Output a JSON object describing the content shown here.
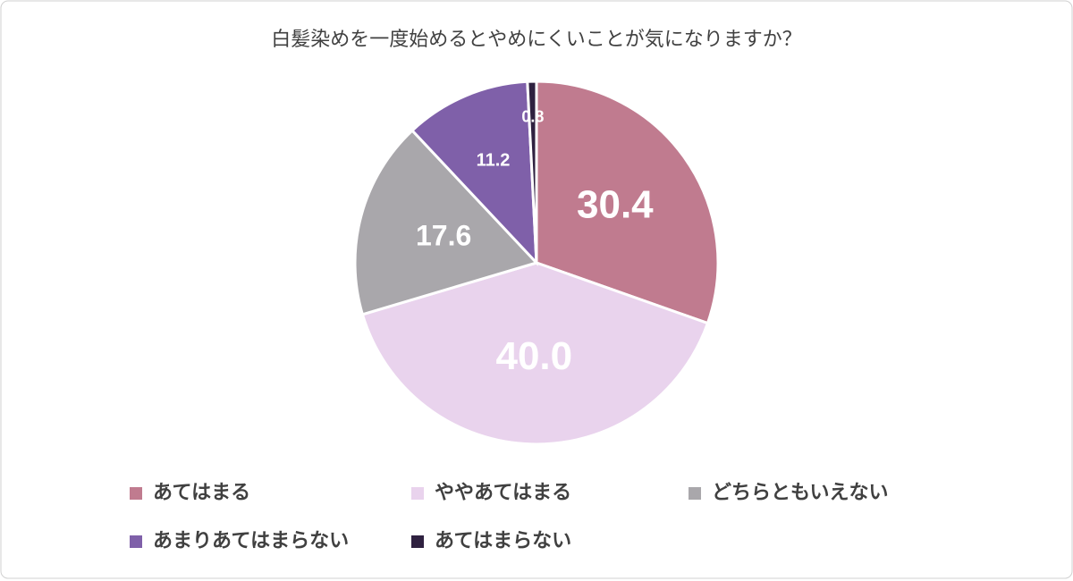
{
  "chart_data": {
    "type": "pie",
    "title": "白髪染めを一度始めるとやめにくいことが気になりますか？",
    "categories": [
      "あてはまる",
      "ややあてはまる",
      "どちらともいえない",
      "あまりあてはまらない",
      "あてはまらない"
    ],
    "values": [
      30.4,
      40.0,
      17.6,
      11.2,
      0.8
    ],
    "value_labels": [
      "30.4",
      "40.0",
      "17.6",
      "11.2",
      "0.8"
    ],
    "colors": [
      "#c07b8f",
      "#e9d3ed",
      "#a9a7ab",
      "#7f60a9",
      "#2f2140"
    ]
  }
}
